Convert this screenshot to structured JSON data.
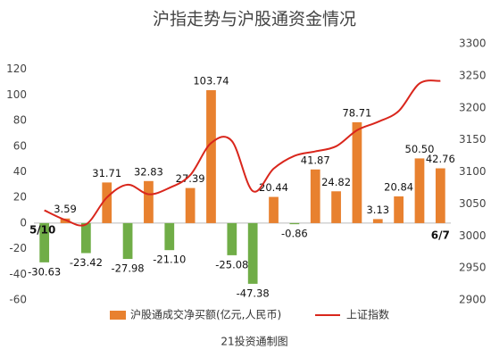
{
  "chart_data": {
    "type": "bar",
    "title": "沪指走势与沪股通资金情况",
    "categories": [
      "5/10",
      null,
      null,
      null,
      null,
      null,
      null,
      null,
      null,
      null,
      null,
      null,
      null,
      null,
      null,
      null,
      null,
      null,
      null,
      "6/7"
    ],
    "series": [
      {
        "name": "沪股通成交净买额(亿元,人民币)",
        "type": "bar",
        "color": "#E8812F",
        "negative_color": "#70AD47",
        "values": [
          -30.63,
          3.59,
          -23.42,
          31.71,
          -27.98,
          32.83,
          -21.1,
          27.39,
          103.74,
          -25.08,
          -47.38,
          20.44,
          -0.86,
          41.87,
          24.82,
          78.71,
          3.13,
          20.84,
          50.5,
          42.76
        ],
        "value_labels": [
          "-30.63",
          "3.59",
          "-23.42",
          "31.71",
          "-27.98",
          "32.83",
          "-21.10",
          "27.39",
          "103.74",
          "-25.08",
          "-47.38",
          "20.44",
          "-0.86",
          "41.87",
          "24.82",
          "78.71",
          "3.13",
          "20.84",
          "50.50",
          "42.76"
        ]
      },
      {
        "name": "上证指数",
        "type": "line",
        "axis": "y2",
        "color": "#D9261C",
        "values": [
          3040,
          3025,
          3018,
          3060,
          3080,
          3065,
          3075,
          3095,
          3145,
          3148,
          3070,
          3105,
          3125,
          3132,
          3140,
          3165,
          3178,
          3195,
          3238,
          3242
        ]
      }
    ],
    "ylim": [
      -60,
      140
    ],
    "yticks": [
      -60,
      -40,
      -20,
      0,
      20,
      40,
      60,
      80,
      100,
      120
    ],
    "y2lim": [
      2900,
      3300
    ],
    "y2ticks": [
      2900,
      2950,
      3000,
      3050,
      3100,
      3150,
      3200,
      3250,
      3300
    ],
    "source": "21投资通制图"
  }
}
